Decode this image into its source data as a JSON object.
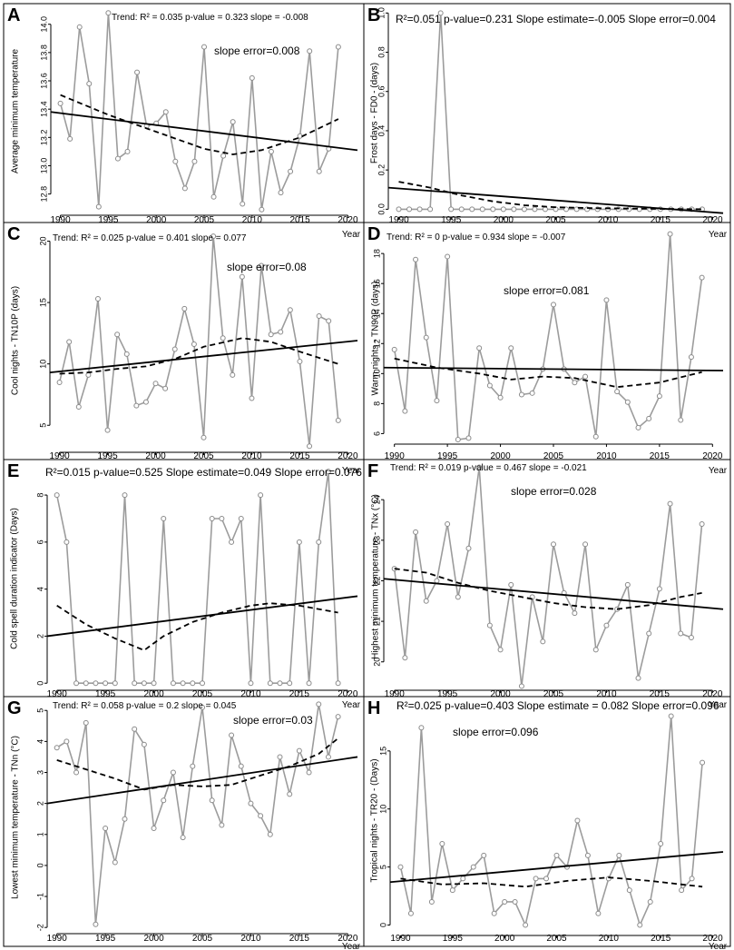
{
  "figure": {
    "xlabel": "Year",
    "x_ticks": [
      1990,
      1995,
      2000,
      2005,
      2010,
      2015,
      2020
    ]
  },
  "chart_data": [
    {
      "type": "line",
      "panel": "A",
      "ylabel": "Average minimum temperature",
      "ylim": [
        12.65,
        14.12
      ],
      "y_ticks": [
        12.8,
        13.0,
        13.2,
        13.4,
        13.6,
        13.8,
        14.0
      ],
      "y_tick_labels": [
        "12.8",
        "13.0",
        "13.2",
        "13.4",
        "13.6",
        "13.8",
        "14.0"
      ],
      "stat_lines": [
        "Trend: R² = 0.035  p-value = 0.323  slope = -0.008",
        "slope error=0.008"
      ],
      "x": [
        1990,
        1991,
        1992,
        1993,
        1994,
        1995,
        1996,
        1997,
        1998,
        1999,
        2000,
        2001,
        2002,
        2003,
        2004,
        2005,
        2006,
        2007,
        2008,
        2009,
        2010,
        2011,
        2012,
        2013,
        2014,
        2015,
        2016,
        2017,
        2018,
        2019
      ],
      "values": [
        13.44,
        13.19,
        13.98,
        13.58,
        12.71,
        14.08,
        13.05,
        13.1,
        13.66,
        13.28,
        13.3,
        13.38,
        13.03,
        12.84,
        13.03,
        13.84,
        12.78,
        13.07,
        13.31,
        12.73,
        13.62,
        12.69,
        13.1,
        12.81,
        12.96,
        13.21,
        13.81,
        12.96,
        13.12,
        13.84
      ],
      "trend_line": {
        "x": [
          1989,
          2021
        ],
        "y": [
          13.38,
          13.11
        ]
      },
      "smooth_line": {
        "x": [
          1990,
          1995,
          2000,
          2005,
          2008,
          2011,
          2015,
          2019
        ],
        "y": [
          13.5,
          13.36,
          13.24,
          13.12,
          13.08,
          13.11,
          13.2,
          13.33
        ]
      }
    },
    {
      "type": "line",
      "panel": "B",
      "ylabel": "Frost days - FD0 - (days)",
      "ylim": [
        -0.04,
        1.02
      ],
      "y_ticks": [
        0,
        0.2,
        0.4,
        0.6,
        0.8,
        1.0
      ],
      "y_tick_labels": [
        "0.0",
        "0.2",
        "0.4",
        "0.6",
        "0.8",
        "1.0"
      ],
      "stat_lines": [
        "R²=0.051        p-value=0.231   Slope estimate=-0.005   Slope error=0.004"
      ],
      "x": [
        1990,
        1991,
        1992,
        1993,
        1994,
        1995,
        1996,
        1997,
        1998,
        1999,
        2000,
        2001,
        2002,
        2003,
        2004,
        2005,
        2006,
        2007,
        2008,
        2009,
        2010,
        2011,
        2012,
        2013,
        2014,
        2015,
        2016,
        2017,
        2018,
        2019
      ],
      "values": [
        0,
        0,
        0,
        0,
        1,
        0,
        0,
        0,
        0,
        0,
        0,
        0,
        0,
        0,
        0,
        0,
        0,
        0,
        0,
        0,
        0,
        0,
        0,
        0,
        0,
        0,
        0,
        0,
        0,
        0
      ],
      "trend_line": {
        "x": [
          1989,
          2021
        ],
        "y": [
          0.11,
          -0.02
        ]
      },
      "smooth_line": {
        "x": [
          1990,
          1993,
          1996,
          1999,
          2002,
          2005,
          2009,
          2013,
          2019
        ],
        "y": [
          0.14,
          0.11,
          0.07,
          0.04,
          0.02,
          0.01,
          0.005,
          0.003,
          0.0
        ]
      }
    },
    {
      "type": "line",
      "panel": "C",
      "ylabel": "Cool nights - TN10P (days)",
      "ylim": [
        2.8,
        21.0
      ],
      "y_ticks": [
        5,
        10,
        15,
        20
      ],
      "y_tick_labels": [
        "5",
        "10",
        "15",
        "20"
      ],
      "stat_lines": [
        "Trend: R² = 0.025  p-value = 0.401       slope = 0.077",
        "slope error=0.08"
      ],
      "x": [
        1990,
        1991,
        1992,
        1993,
        1994,
        1995,
        1996,
        1997,
        1998,
        1999,
        2000,
        2001,
        2002,
        2003,
        2004,
        2005,
        2006,
        2007,
        2008,
        2009,
        2010,
        2011,
        2012,
        2013,
        2014,
        2015,
        2016,
        2017,
        2018,
        2019
      ],
      "values": [
        8.5,
        11.8,
        6.5,
        9.1,
        15.3,
        4.6,
        12.4,
        10.8,
        6.6,
        6.9,
        8.4,
        8,
        11.2,
        14.5,
        11.6,
        4,
        20.4,
        12.1,
        9.1,
        17.1,
        7.2,
        18,
        12.4,
        12.6,
        14.4,
        10.2,
        3.3,
        13.9,
        13.5,
        5.4
      ],
      "trend_line": {
        "x": [
          1989,
          2021
        ],
        "y": [
          9.3,
          11.9
        ]
      },
      "smooth_line": {
        "x": [
          1990,
          1993,
          1996,
          1999,
          2002,
          2005,
          2009,
          2012,
          2015,
          2019
        ],
        "y": [
          9.2,
          9.3,
          9.6,
          9.8,
          10.4,
          11.4,
          12.1,
          11.8,
          11.0,
          10.0
        ]
      }
    },
    {
      "type": "line",
      "panel": "D",
      "ylabel": "Warm nights - TN90P (days)",
      "ylim": [
        5.3,
        19.4
      ],
      "y_ticks": [
        6,
        8,
        10,
        12,
        14,
        16,
        18
      ],
      "y_tick_labels": [
        "6",
        "8",
        "10",
        "12",
        "14",
        "16",
        "18"
      ],
      "stat_lines": [
        "Trend: R² = 0    p-value = 0.934    slope = -0.007",
        "slope error=0.081"
      ],
      "x": [
        1990,
        1991,
        1992,
        1993,
        1994,
        1995,
        1996,
        1997,
        1998,
        1999,
        2000,
        2001,
        2002,
        2003,
        2004,
        2005,
        2006,
        2007,
        2008,
        2009,
        2010,
        2011,
        2012,
        2013,
        2014,
        2015,
        2016,
        2017,
        2018,
        2019
      ],
      "values": [
        11.6,
        7.5,
        17.6,
        12.4,
        8.2,
        17.8,
        5.6,
        5.7,
        11.7,
        9.2,
        8.4,
        11.7,
        8.6,
        8.7,
        10.3,
        14.6,
        10.3,
        9.4,
        9.8,
        5.8,
        14.9,
        8.8,
        8.1,
        6.4,
        7,
        8.5,
        19.3,
        6.9,
        11.1,
        16.4
      ],
      "trend_line": {
        "x": [
          1989,
          2021
        ],
        "y": [
          10.4,
          10.2
        ]
      },
      "smooth_line": {
        "x": [
          1990,
          1994,
          1998,
          2001,
          2004,
          2007,
          2011,
          2015,
          2019
        ],
        "y": [
          11.0,
          10.4,
          10.0,
          9.6,
          9.8,
          9.7,
          9.1,
          9.4,
          10.1
        ]
      }
    },
    {
      "type": "line",
      "panel": "E",
      "ylabel": "Cold spell duration indicator (Days)",
      "ylim": [
        -0.3,
        9.2
      ],
      "y_ticks": [
        0,
        2,
        4,
        6,
        8
      ],
      "y_tick_labels": [
        "0",
        "2",
        "4",
        "6",
        "8"
      ],
      "stat_lines": [
        "R²=0.015      p-value=0.525     Slope estimate=0.049     Slope error=0.076"
      ],
      "x": [
        1990,
        1991,
        1992,
        1993,
        1994,
        1995,
        1996,
        1997,
        1998,
        1999,
        2000,
        2001,
        2002,
        2003,
        2004,
        2005,
        2006,
        2007,
        2008,
        2009,
        2010,
        2011,
        2012,
        2013,
        2014,
        2015,
        2016,
        2017,
        2018,
        2019
      ],
      "values": [
        8,
        6,
        0,
        0,
        0,
        0,
        0,
        8,
        0,
        0,
        0,
        7,
        0,
        0,
        0,
        0,
        7,
        7,
        6,
        7,
        0,
        8,
        0,
        0,
        0,
        6,
        0,
        6,
        9,
        0
      ],
      "trend_line": {
        "x": [
          1989,
          2021
        ],
        "y": [
          2.0,
          3.7
        ]
      },
      "smooth_line": {
        "x": [
          1990,
          1993,
          1996,
          1999,
          2001,
          2004,
          2007,
          2010,
          2012,
          2015,
          2019
        ],
        "y": [
          3.3,
          2.5,
          1.9,
          1.4,
          2.0,
          2.6,
          3.0,
          3.3,
          3.4,
          3.3,
          3.0
        ]
      }
    },
    {
      "type": "line",
      "panel": "F",
      "ylabel": "Highest minimum temperature - TNx (°C)",
      "ylim": [
        19.3,
        24.9
      ],
      "y_ticks": [
        20,
        21,
        22,
        23,
        24
      ],
      "y_tick_labels": [
        "20",
        "21",
        "22",
        "23",
        "24"
      ],
      "stat_lines": [
        "Trend: R² = 0.019      p-value = 0.467       slope = -0.021",
        "slope error=0.028"
      ],
      "x": [
        1990,
        1991,
        1992,
        1993,
        1994,
        1995,
        1996,
        1997,
        1998,
        1999,
        2000,
        2001,
        2002,
        2003,
        2004,
        2005,
        2006,
        2007,
        2008,
        2009,
        2010,
        2011,
        2012,
        2013,
        2014,
        2015,
        2016,
        2017,
        2018,
        2019
      ],
      "values": [
        22.3,
        20.1,
        23.2,
        21.5,
        22,
        23.4,
        21.6,
        22.8,
        24.8,
        20.9,
        20.3,
        21.9,
        19.4,
        21.6,
        20.5,
        22.9,
        21.7,
        21.2,
        22.9,
        20.3,
        20.9,
        21.3,
        21.9,
        19.6,
        20.7,
        21.8,
        23.9,
        20.7,
        20.6,
        23.4
      ],
      "trend_line": {
        "x": [
          1989,
          2021
        ],
        "y": [
          22.05,
          21.3
        ]
      },
      "smooth_line": {
        "x": [
          1990,
          1993,
          1996,
          1999,
          2002,
          2005,
          2008,
          2011,
          2014,
          2017,
          2019
        ],
        "y": [
          22.3,
          22.2,
          21.95,
          21.75,
          21.6,
          21.45,
          21.35,
          21.3,
          21.4,
          21.6,
          21.7
        ]
      }
    },
    {
      "type": "line",
      "panel": "G",
      "ylabel": "Lowest minimum temperature - TNn (°C)",
      "ylim": [
        -2.2,
        5.3
      ],
      "y_ticks": [
        -2,
        -1,
        0,
        1,
        2,
        3,
        4,
        5
      ],
      "y_tick_labels": [
        "-2",
        "-1",
        "0",
        "1",
        "2",
        "3",
        "4",
        "5"
      ],
      "stat_lines": [
        "Trend: R² = 0.058       p-value = 0.2         slope = 0.045",
        "slope error=0.03"
      ],
      "x": [
        1990,
        1991,
        1992,
        1993,
        1994,
        1995,
        1996,
        1997,
        1998,
        1999,
        2000,
        2001,
        2002,
        2003,
        2004,
        2005,
        2006,
        2007,
        2008,
        2009,
        2010,
        2011,
        2012,
        2013,
        2014,
        2015,
        2016,
        2017,
        2018,
        2019
      ],
      "values": [
        3.8,
        4,
        3,
        4.6,
        -1.9,
        1.2,
        0.1,
        1.5,
        4.4,
        3.9,
        1.2,
        2.1,
        3,
        0.9,
        3.2,
        5.1,
        2.1,
        1.3,
        4.2,
        3.2,
        2,
        1.6,
        1,
        3.5,
        2.3,
        3.7,
        3,
        5.2,
        3.5,
        4.8
      ],
      "trend_line": {
        "x": [
          1989,
          2021
        ],
        "y": [
          2.0,
          3.5
        ]
      },
      "smooth_line": {
        "x": [
          1990,
          1993,
          1996,
          1999,
          2002,
          2005,
          2008,
          2011,
          2014,
          2017,
          2019
        ],
        "y": [
          3.4,
          3.1,
          2.8,
          2.45,
          2.6,
          2.55,
          2.6,
          2.9,
          3.2,
          3.6,
          4.1
        ]
      }
    },
    {
      "type": "line",
      "panel": "H",
      "ylabel": "Tropical nights - TR20 - (Days)",
      "ylim": [
        -0.9,
        18.9
      ],
      "y_ticks": [
        0,
        5,
        10,
        15
      ],
      "y_tick_labels": [
        "0",
        "5",
        "10",
        "15"
      ],
      "stat_lines": [
        "R²=0.025   p-value=0.403   Slope estimate = 0.082   Slope error=0.096",
        "slope error=0.096"
      ],
      "x": [
        1990,
        1991,
        1992,
        1993,
        1994,
        1995,
        1996,
        1997,
        1998,
        1999,
        2000,
        2001,
        2002,
        2003,
        2004,
        2005,
        2006,
        2007,
        2008,
        2009,
        2010,
        2011,
        2012,
        2013,
        2014,
        2015,
        2016,
        2017,
        2018,
        2019
      ],
      "values": [
        5,
        1,
        17,
        2,
        7,
        3,
        4,
        5,
        6,
        1,
        2,
        2,
        0,
        4,
        4,
        6,
        5,
        9,
        6,
        1,
        4,
        6,
        3,
        0,
        2,
        7,
        18,
        3,
        4,
        14
      ],
      "trend_line": {
        "x": [
          1989,
          2021
        ],
        "y": [
          3.7,
          6.3
        ]
      },
      "smooth_line": {
        "x": [
          1990,
          1994,
          1998,
          2002,
          2006,
          2010,
          2014,
          2017,
          2019
        ],
        "y": [
          4.0,
          3.5,
          3.6,
          3.3,
          3.8,
          4.1,
          3.8,
          3.5,
          3.3
        ]
      }
    }
  ]
}
